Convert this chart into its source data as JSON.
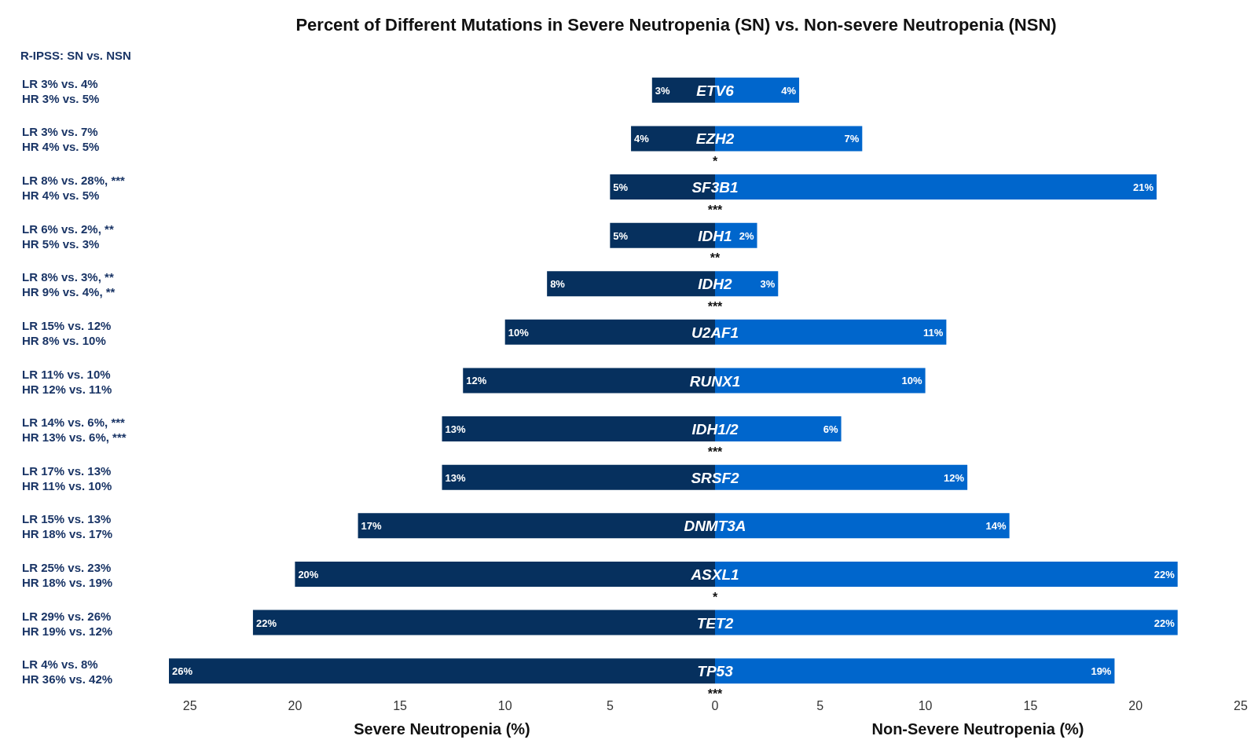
{
  "chart_data": [
    {
      "type": "bar",
      "orientation": "horizontal",
      "title": "Percent of Different Mutations in Severe Neutropenia (SN) vs. Non-severe Neutropenia (NSN)",
      "xlabel": "Severe Neutropenia (%)",
      "categories": [
        "ETV6",
        "EZH2",
        "SF3B1",
        "IDH1",
        "IDH2",
        "U2AF1",
        "RUNX1",
        "IDH1/2",
        "SRSF2",
        "DNMT3A",
        "ASXL1",
        "TET2",
        "TP53"
      ],
      "series": [
        {
          "color": "#06305e",
          "values": [
            3,
            4,
            5,
            5,
            8,
            10,
            12,
            13,
            13,
            17,
            20,
            22,
            26
          ],
          "value_labels": [
            "3%",
            "4%",
            "5%",
            "5%",
            "8%",
            "10%",
            "12%",
            "13%",
            "13%",
            "17%",
            "20%",
            "22%",
            "26%"
          ]
        }
      ],
      "xlim": [
        26,
        0
      ],
      "xticks": [
        25,
        20,
        15,
        10,
        5
      ],
      "annotations": [
        "R-IPSS: SN vs. NSN",
        "LR 3% vs. 4%",
        "HR 3% vs. 5%",
        "LR 3% vs. 7%",
        "HR 4% vs. 5%",
        "LR 8% vs. 28%, ***",
        "HR 4% vs. 5%",
        "LR 6% vs. 2%, **",
        "HR 5% vs. 3%",
        "LR 8% vs. 3%, **",
        "HR 9% vs. 4%, **",
        "LR 15% vs. 12%",
        "HR 8% vs. 10%",
        "LR 11% vs. 10%",
        "HR 12% vs. 11%",
        "LR 14% vs. 6%, ***",
        "HR 13% vs. 6%, ***",
        "LR 17% vs. 13%",
        "HR 11% vs. 10%",
        "LR 15% vs. 13%",
        "HR 18% vs. 17%",
        "LR 25% vs. 23%",
        "HR 18% vs. 19%",
        "LR 29% vs. 26%",
        "HR 19% vs. 12%",
        "LR 4% vs. 8%",
        "HR 36% vs. 42%"
      ]
    },
    {
      "type": "bar",
      "orientation": "horizontal",
      "xlabel": "Non-Severe Neutropenia (%)",
      "categories": [
        "ETV6",
        "EZH2",
        "SF3B1",
        "IDH1",
        "IDH2",
        "U2AF1",
        "RUNX1",
        "IDH1/2",
        "SRSF2",
        "DNMT3A",
        "ASXL1",
        "TET2",
        "TP53"
      ],
      "series": [
        {
          "color": "#0066cc",
          "values": [
            4,
            7,
            21,
            2,
            3,
            11,
            10,
            6,
            12,
            14,
            22,
            22,
            19
          ],
          "value_labels": [
            "4%",
            "7%",
            "21%",
            "2%",
            "3%",
            "11%",
            "10%",
            "6%",
            "12%",
            "14%",
            "22%",
            "22%",
            "19%"
          ]
        }
      ],
      "xlim": [
        0,
        25
      ],
      "xticks": [
        0,
        5,
        10,
        15,
        20,
        25
      ],
      "tick_labels": "x",
      "annotations": [
        {
          "text": "*",
          "y": "EZH2"
        },
        {
          "text": "***",
          "y": "SF3B1"
        },
        {
          "text": "**",
          "y": "IDH1"
        },
        {
          "text": "***",
          "y": "IDH2"
        },
        {
          "text": "***",
          "y": "IDH1/2"
        },
        {
          "text": "*",
          "y": "ASXL1"
        },
        {
          "text": "***",
          "y": "TP53"
        }
      ]
    }
  ]
}
